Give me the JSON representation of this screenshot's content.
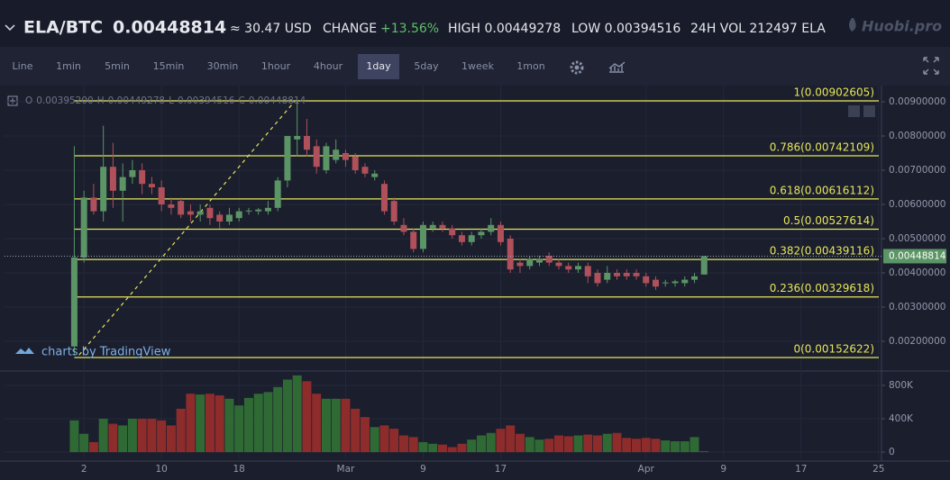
{
  "header": {
    "pair": "ELA/BTC",
    "price": "0.00448814",
    "usd": "≈ 30.47 USD",
    "change_label": "CHANGE",
    "change": "+13.56%",
    "high": "HIGH 0.00449278",
    "low": "LOW 0.00394516",
    "volume": "24H VOL 212497 ELA",
    "brand": "Huobi.pro"
  },
  "toolbar": {
    "intervals": [
      "Line",
      "1min",
      "5min",
      "15min",
      "30min",
      "1hour",
      "4hour",
      "1day",
      "5day",
      "1week",
      "1mon"
    ],
    "active": "1day"
  },
  "legend": [
    "O",
    "0.00395200",
    "H",
    "0.00449278",
    "L",
    "0.00394516",
    "C",
    "0.00448814"
  ],
  "watermark": "charts by TradingView",
  "chart_data": {
    "type": "candlestick",
    "x": [
      0,
      1,
      2,
      3,
      4,
      5,
      6,
      7,
      8,
      9,
      10,
      11,
      12,
      13,
      14,
      15,
      16,
      17,
      18,
      19,
      20,
      21,
      22,
      23,
      24,
      25,
      26,
      27,
      28,
      29,
      30,
      31,
      32,
      33,
      34,
      35,
      36,
      37,
      38,
      39,
      40,
      41,
      42,
      43,
      44,
      45,
      46,
      47,
      48,
      49,
      50,
      51,
      52,
      53,
      54,
      55,
      56,
      57,
      58,
      59,
      60,
      61,
      62,
      63,
      64,
      65
    ],
    "open": [
      0.00185,
      0.00445,
      0.0062,
      0.0058,
      0.0071,
      0.0064,
      0.0068,
      0.007,
      0.0066,
      0.0065,
      0.006,
      0.0061,
      0.0058,
      0.0057,
      0.0059,
      0.0057,
      0.0055,
      0.0056,
      0.0058,
      0.0058,
      0.0058,
      0.0059,
      0.0067,
      0.0079,
      0.008,
      0.0077,
      0.007,
      0.0073,
      0.0075,
      0.0074,
      0.0071,
      0.0068,
      0.0066,
      0.0061,
      0.0054,
      0.0052,
      0.0047,
      0.0053,
      0.0054,
      0.0053,
      0.0051,
      0.0049,
      0.0051,
      0.0052,
      0.0054,
      0.005,
      0.0043,
      0.0042,
      0.0043,
      0.0045,
      0.0043,
      0.0042,
      0.0041,
      0.0042,
      0.004,
      0.0038,
      0.004,
      0.004,
      0.004,
      0.0039,
      0.0038,
      0.0037,
      0.0037,
      0.0037,
      0.0038,
      0.003952
    ],
    "high": [
      0.0077,
      0.0064,
      0.0066,
      0.0083,
      0.0078,
      0.0072,
      0.0073,
      0.0072,
      0.0068,
      0.0067,
      0.0062,
      0.0062,
      0.006,
      0.006,
      0.006,
      0.0058,
      0.0059,
      0.0059,
      0.0059,
      0.0059,
      0.0061,
      0.0068,
      0.008,
      0.009,
      0.0085,
      0.0079,
      0.0078,
      0.0079,
      0.0076,
      0.0075,
      0.0072,
      0.007,
      0.0067,
      0.0062,
      0.0056,
      0.0053,
      0.0055,
      0.0055,
      0.0055,
      0.0054,
      0.0052,
      0.0052,
      0.0053,
      0.0056,
      0.0055,
      0.0051,
      0.0044,
      0.0045,
      0.0045,
      0.0046,
      0.0044,
      0.0043,
      0.0043,
      0.0043,
      0.0041,
      0.0042,
      0.0041,
      0.0041,
      0.0041,
      0.004,
      0.0039,
      0.0038,
      0.0038,
      0.0039,
      0.004,
      0.00449278
    ],
    "low": [
      0.0016,
      0.0043,
      0.0057,
      0.0055,
      0.0059,
      0.0055,
      0.0066,
      0.0063,
      0.0063,
      0.0058,
      0.0057,
      0.0056,
      0.0055,
      0.0055,
      0.0054,
      0.0053,
      0.0054,
      0.0055,
      0.0057,
      0.0057,
      0.0057,
      0.0058,
      0.0065,
      0.0074,
      0.0074,
      0.0069,
      0.0069,
      0.0072,
      0.0071,
      0.0069,
      0.0068,
      0.0067,
      0.0057,
      0.0054,
      0.0051,
      0.0046,
      0.0046,
      0.0052,
      0.0052,
      0.005,
      0.0048,
      0.0048,
      0.005,
      0.0051,
      0.0048,
      0.004,
      0.004,
      0.0041,
      0.0042,
      0.0042,
      0.0041,
      0.004,
      0.004,
      0.0037,
      0.0036,
      0.0037,
      0.0038,
      0.0038,
      0.0038,
      0.0036,
      0.0035,
      0.0036,
      0.0036,
      0.0036,
      0.0037,
      0.00394516
    ],
    "close": [
      0.00445,
      0.0062,
      0.0058,
      0.0071,
      0.0064,
      0.0068,
      0.007,
      0.0066,
      0.0065,
      0.006,
      0.0059,
      0.0057,
      0.0057,
      0.0058,
      0.0056,
      0.0055,
      0.0057,
      0.0058,
      0.00582,
      0.00585,
      0.0059,
      0.0067,
      0.008,
      0.008,
      0.0076,
      0.0071,
      0.0077,
      0.0076,
      0.0073,
      0.007,
      0.0069,
      0.0069,
      0.0058,
      0.0055,
      0.0052,
      0.0047,
      0.0054,
      0.0054,
      0.0053,
      0.0051,
      0.0049,
      0.0051,
      0.0052,
      0.0054,
      0.0049,
      0.0041,
      0.0042,
      0.0044,
      0.0044,
      0.0043,
      0.0042,
      0.0041,
      0.0042,
      0.0039,
      0.0037,
      0.004,
      0.0039,
      0.0039,
      0.0039,
      0.0037,
      0.0036,
      0.00372,
      0.00375,
      0.0038,
      0.0039,
      0.00448814
    ],
    "volume": [
      380000,
      220000,
      120000,
      400000,
      340000,
      320000,
      400000,
      400000,
      400000,
      380000,
      320000,
      520000,
      700000,
      690000,
      700000,
      680000,
      640000,
      560000,
      650000,
      700000,
      720000,
      780000,
      870000,
      920000,
      850000,
      700000,
      640000,
      640000,
      640000,
      520000,
      420000,
      300000,
      320000,
      280000,
      200000,
      180000,
      120000,
      100000,
      90000,
      60000,
      100000,
      150000,
      200000,
      230000,
      280000,
      320000,
      220000,
      180000,
      150000,
      160000,
      200000,
      190000,
      200000,
      210000,
      200000,
      220000,
      230000,
      170000,
      160000,
      170000,
      160000,
      140000,
      130000,
      130000,
      180000,
      10000
    ],
    "up_color": "#5b9566",
    "down_color": "#b0505a",
    "volume_up_color": "#2f6a35",
    "volume_down_color": "#8e2c2c",
    "xlim": [
      -7.2,
      83.3
    ],
    "xticks": [
      {
        "value": 1,
        "label": "2"
      },
      {
        "value": 9,
        "label": "10"
      },
      {
        "value": 17,
        "label": "18"
      },
      {
        "value": 28,
        "label": "Mar"
      },
      {
        "value": 36,
        "label": "9"
      },
      {
        "value": 44,
        "label": "17"
      },
      {
        "value": 59,
        "label": "Apr"
      },
      {
        "value": 67,
        "label": "9"
      },
      {
        "value": 75,
        "label": "17"
      },
      {
        "value": 83,
        "label": "25"
      }
    ],
    "ylim": [
      0.001184,
      0.009474
    ],
    "yticks": [
      {
        "value": 0.009,
        "label": "0.00900000"
      },
      {
        "value": 0.008,
        "label": "0.00800000"
      },
      {
        "value": 0.007,
        "label": "0.00700000"
      },
      {
        "value": 0.006,
        "label": "0.00600000"
      },
      {
        "value": 0.005,
        "label": "0.00500000"
      },
      {
        "value": 0.004,
        "label": "0.00400000"
      },
      {
        "value": 0.003,
        "label": "0.00300000"
      },
      {
        "value": 0.002,
        "label": "0.00200000"
      }
    ],
    "volume_ylim": [
      -86000,
      940000
    ],
    "volume_yticks": [
      {
        "value": 800000,
        "label": "800K"
      },
      {
        "value": 400000,
        "label": "400K"
      },
      0
    ],
    "fib_levels": [
      {
        "value": 0.00902605,
        "label": "1(0.00902605)"
      },
      {
        "value": 0.00742109,
        "label": "0.786(0.00742109)"
      },
      {
        "value": 0.00616112,
        "label": "0.618(0.00616112)"
      },
      {
        "value": 0.00527614,
        "label": "0.5(0.00527614)"
      },
      {
        "value": 0.00439116,
        "label": "0.382(0.00439116)"
      },
      {
        "value": 0.00329618,
        "label": "0.236(0.00329618)"
      },
      {
        "value": 0.00152622,
        "label": "0(0.00152622)"
      }
    ],
    "fib_color": "#e6e65a",
    "trendline": {
      "x": [
        0.5,
        22.7
      ],
      "y": [
        0.0016,
        0.009
      ]
    },
    "grid": true
  }
}
